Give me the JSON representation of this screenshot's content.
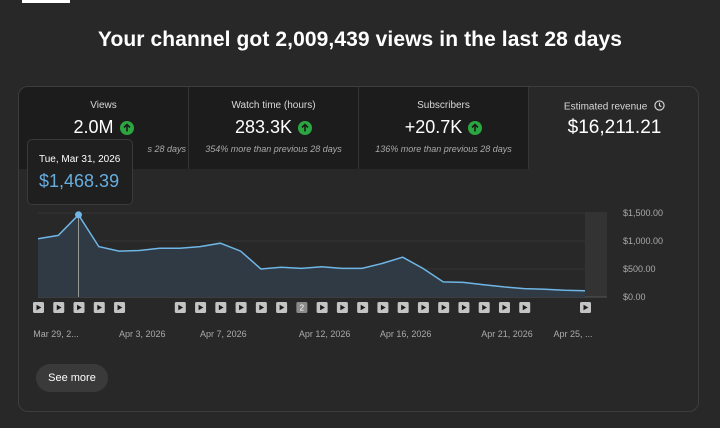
{
  "headline": "Your channel got 2,009,439 views in the last 28 days",
  "metrics": [
    {
      "label": "Views",
      "value": "2.0M",
      "trend": "up",
      "sub": "s 28 days"
    },
    {
      "label": "Watch time (hours)",
      "value": "283.3K",
      "trend": "up",
      "sub": "354% more than previous 28 days"
    },
    {
      "label": "Subscribers",
      "value": "+20.7K",
      "trend": "up",
      "sub": "136% more than previous 28 days"
    },
    {
      "label": "Estimated revenue",
      "value": "$16,211.21",
      "icon": "clock-icon"
    }
  ],
  "tooltip": {
    "date": "Tue, Mar 31, 2026",
    "value": "$1,468.39"
  },
  "see_more_label": "See more",
  "colors": {
    "line": "#6fb6e6",
    "up": "#2ba640",
    "tooltip_value": "#67aee0"
  },
  "chart_data": {
    "type": "area",
    "y_ticks": [
      "$1,500.00",
      "$1,000.00",
      "$500.00",
      "$0.00"
    ],
    "ylim": [
      0,
      1500
    ],
    "x_labels": [
      "Mar 29, 2...",
      "Apr 3, 2026",
      "Apr 7, 2026",
      "Apr 12, 2026",
      "Apr 16, 2026",
      "Apr 21, 2026",
      "Apr 25, ..."
    ],
    "dates": [
      "Mar 29",
      "Mar 30",
      "Mar 31",
      "Apr 1",
      "Apr 2",
      "Apr 3",
      "Apr 4",
      "Apr 5",
      "Apr 6",
      "Apr 7",
      "Apr 8",
      "Apr 9",
      "Apr 10",
      "Apr 11",
      "Apr 12",
      "Apr 13",
      "Apr 14",
      "Apr 15",
      "Apr 16",
      "Apr 17",
      "Apr 18",
      "Apr 19",
      "Apr 20",
      "Apr 21",
      "Apr 22",
      "Apr 23",
      "Apr 24",
      "Apr 25"
    ],
    "values": [
      1040,
      1100,
      1468,
      900,
      820,
      830,
      870,
      870,
      900,
      960,
      820,
      500,
      530,
      510,
      540,
      510,
      510,
      600,
      710,
      510,
      270,
      260,
      220,
      180,
      150,
      140,
      120,
      110
    ],
    "highlight_index": 2,
    "markers": [
      "play",
      "play",
      "play",
      "play",
      "play",
      "",
      "",
      "play",
      "play",
      "play",
      "play",
      "play",
      "play",
      "2",
      "play",
      "play",
      "play",
      "play",
      "play",
      "play",
      "play",
      "play",
      "play",
      "play",
      "play",
      "",
      "",
      "play"
    ]
  }
}
